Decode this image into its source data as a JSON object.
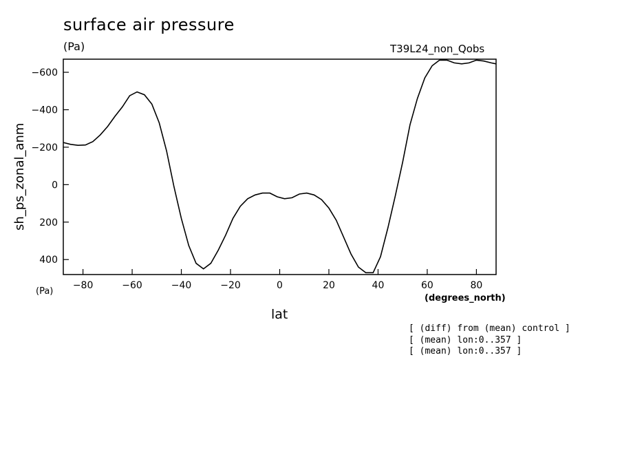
{
  "header": {
    "title": "surface air pressure",
    "units": "(Pa)",
    "run": "T39L24_non_Qobs"
  },
  "notes": [
    "[ (diff) from (mean) control ]",
    "[ (mean) lon:0..357 ]",
    "[ (mean) lon:0..357 ]"
  ],
  "chart_data": {
    "type": "line",
    "title": "surface air pressure",
    "ylabel": "sh_ps_zonal_anm",
    "xlabel": "lat",
    "y_unit": "(Pa)",
    "x_unit": "(degrees_north)",
    "xlim": [
      -88,
      88
    ],
    "ylim": [
      480,
      -670
    ],
    "y_inverted": true,
    "xticks": [
      -80,
      -60,
      -40,
      -20,
      0,
      20,
      40,
      60,
      80
    ],
    "yticks": [
      -600,
      -400,
      -200,
      0,
      200,
      400
    ],
    "grid": false,
    "series": [
      {
        "x": [
          -88,
          -85,
          -82,
          -79,
          -76,
          -73,
          -70,
          -67,
          -64,
          -61,
          -58,
          -55,
          -52,
          -49,
          -46,
          -43,
          -40,
          -37,
          -34,
          -31,
          -28,
          -25,
          -22,
          -19,
          -16,
          -13,
          -10,
          -7,
          -4,
          -1,
          2,
          5,
          8,
          11,
          14,
          17,
          20,
          23,
          26,
          29,
          32,
          35,
          38,
          41,
          44,
          47,
          50,
          53,
          56,
          59,
          62,
          65,
          68,
          71,
          74,
          77,
          80,
          83,
          86,
          88
        ],
        "y": [
          -225,
          -215,
          -210,
          -212,
          -230,
          -265,
          -310,
          -365,
          -415,
          -475,
          -495,
          -480,
          -430,
          -330,
          -180,
          10,
          180,
          325,
          420,
          450,
          420,
          350,
          270,
          180,
          115,
          75,
          55,
          45,
          45,
          65,
          75,
          70,
          50,
          45,
          55,
          80,
          125,
          190,
          280,
          370,
          440,
          470,
          470,
          385,
          230,
          60,
          -120,
          -320,
          -460,
          -570,
          -635,
          -665,
          -665,
          -650,
          -645,
          -650,
          -665,
          -660,
          -650,
          -645
        ]
      }
    ]
  }
}
